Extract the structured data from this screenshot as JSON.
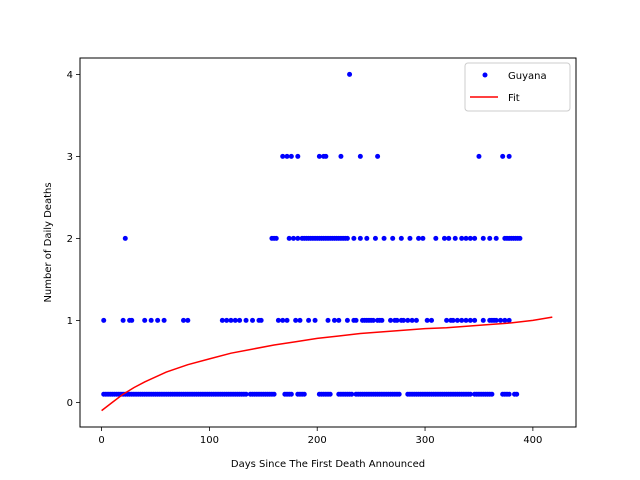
{
  "chart_data": {
    "type": "scatter",
    "title": "",
    "xlabel": "Days Since The First Death Announced",
    "ylabel": "Number of Daily Deaths",
    "xlim": [
      -20,
      440
    ],
    "ylim": [
      -0.3,
      4.2
    ],
    "xticks": [
      0,
      100,
      200,
      300,
      400
    ],
    "yticks": [
      0,
      1,
      2,
      3,
      4
    ],
    "legend_position": "top-right",
    "series": [
      {
        "name": "Guyana",
        "kind": "points",
        "color": "#0000ff",
        "groups": [
          {
            "y": 0.1,
            "ranges": [
              [
                2,
                134
              ],
              [
                138,
                160
              ],
              [
                170,
                176
              ],
              [
                182,
                188
              ],
              [
                202,
                212
              ],
              [
                220,
                232
              ],
              [
                236,
                276
              ],
              [
                284,
                342
              ],
              [
                346,
                362
              ],
              [
                372,
                378
              ],
              [
                383,
                386
              ]
            ]
          },
          {
            "y": 1,
            "x": [
              2,
              20,
              26,
              28,
              40,
              46,
              52,
              58,
              76,
              80,
              112,
              116,
              120,
              124,
              128,
              134,
              140,
              146,
              148,
              164,
              168,
              172,
              180,
              184,
              192,
              198,
              210,
              216,
              220,
              228,
              234,
              236,
              242,
              244,
              246,
              248,
              250,
              252,
              256,
              258,
              260,
              268,
              272,
              274,
              278,
              280,
              284,
              288,
              292,
              302,
              306,
              320,
              324,
              326,
              330,
              334,
              338,
              342,
              346,
              354,
              360,
              362,
              364,
              366,
              370,
              374,
              378
            ]
          },
          {
            "y": 2,
            "x": [
              22,
              158,
              160,
              162,
              174,
              178,
              182,
              186,
              188,
              190,
              192,
              194,
              196,
              198,
              200,
              202,
              204,
              206,
              208,
              210,
              212,
              214,
              216,
              218,
              220,
              222,
              224,
              226,
              228,
              234,
              240,
              246,
              254,
              262,
              270,
              278,
              286,
              294,
              298,
              310,
              318,
              322,
              328,
              334,
              338,
              342,
              346,
              354,
              360,
              366,
              374,
              376,
              378,
              380,
              382,
              384,
              386,
              388
            ]
          },
          {
            "y": 3,
            "x": [
              168,
              172,
              176,
              182,
              202,
              206,
              208,
              222,
              240,
              256,
              350,
              372,
              378
            ]
          },
          {
            "y": 4,
            "x": [
              230
            ]
          }
        ]
      },
      {
        "name": "Fit",
        "kind": "line",
        "color": "#ff0000",
        "x": [
          0,
          10,
          20,
          30,
          40,
          60,
          80,
          100,
          120,
          140,
          160,
          180,
          200,
          220,
          240,
          260,
          280,
          300,
          320,
          340,
          360,
          380,
          400,
          418
        ],
        "y": [
          -0.1,
          0.0,
          0.1,
          0.18,
          0.25,
          0.37,
          0.46,
          0.53,
          0.6,
          0.65,
          0.7,
          0.74,
          0.78,
          0.81,
          0.84,
          0.86,
          0.88,
          0.9,
          0.91,
          0.93,
          0.95,
          0.97,
          1.0,
          1.04
        ]
      }
    ]
  }
}
